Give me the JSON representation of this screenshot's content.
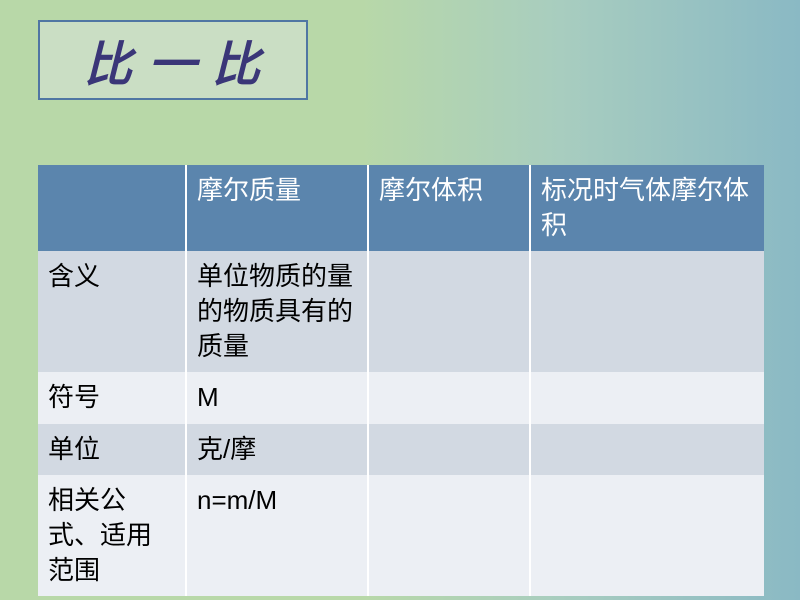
{
  "title": "比 一 比",
  "table": {
    "header_bg": "#5b85ad",
    "header_fg": "#ffffff",
    "row_odd_bg": "#d2d9e2",
    "row_even_bg": "#eceff4",
    "border_color": "#ffffff",
    "font_size": 26,
    "columns": [
      "",
      "摩尔质量",
      "摩尔体积",
      "标况时气体摩尔体积"
    ],
    "rows": [
      {
        "label": "含义",
        "cells": [
          "单位物质的量的物质具有的质量",
          "",
          ""
        ]
      },
      {
        "label": "符号",
        "cells": [
          "M",
          "",
          ""
        ]
      },
      {
        "label": "单位",
        "cells": [
          "克/摩",
          "",
          ""
        ]
      },
      {
        "label": "相关公式、适用范围",
        "cells": [
          "n=m/M",
          "",
          ""
        ]
      }
    ]
  },
  "background": {
    "gradient_from": "#b8d8a8",
    "gradient_to": "#8ab9c4"
  },
  "title_box": {
    "bg": "#cadec4",
    "border": "#5076a3",
    "text_color": "#3a3678",
    "font_size": 48
  }
}
